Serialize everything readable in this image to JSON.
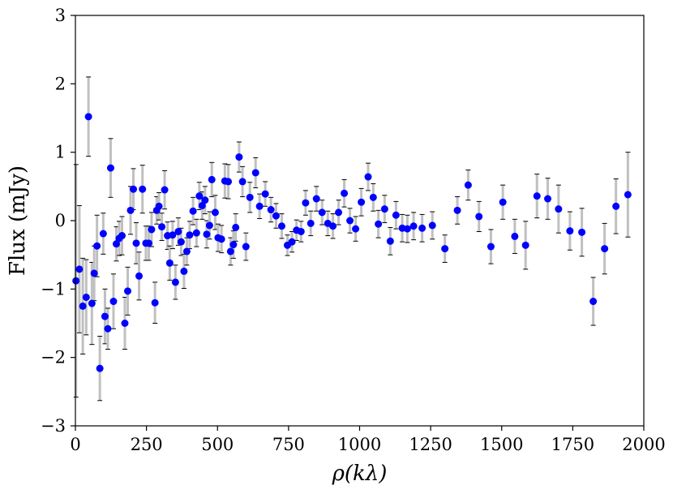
{
  "chart_data": {
    "type": "scatter",
    "xlabel": "ρ(kλ)",
    "ylabel": "Flux (mJy)",
    "xlim": [
      0,
      2000
    ],
    "ylim": [
      -3,
      3
    ],
    "x_ticks": [
      "0",
      "250",
      "500",
      "750",
      "1000",
      "1250",
      "1500",
      "1750",
      "2000"
    ],
    "y_ticks": [
      "−3",
      "−2",
      "−1",
      "0",
      "1",
      "2",
      "3"
    ],
    "grid": false,
    "marker_color": "#0000ff",
    "errorbar_color": "#c0c0c0",
    "errorbar_cap_color": "#000000",
    "points": [
      {
        "x": 2,
        "y": -0.88,
        "err": 1.7
      },
      {
        "x": 14,
        "y": -0.71,
        "err": 0.93
      },
      {
        "x": 26,
        "y": -1.25,
        "err": 0.7
      },
      {
        "x": 38,
        "y": -1.12,
        "err": 0.55
      },
      {
        "x": 46,
        "y": 1.52,
        "err": 0.58
      },
      {
        "x": 58,
        "y": -1.21,
        "err": 0.6
      },
      {
        "x": 66,
        "y": -0.77,
        "err": 0.4
      },
      {
        "x": 76,
        "y": -0.37,
        "err": 0.45
      },
      {
        "x": 86,
        "y": -2.16,
        "err": 0.47
      },
      {
        "x": 98,
        "y": -0.19,
        "err": 0.3
      },
      {
        "x": 104,
        "y": -1.4,
        "err": 0.4
      },
      {
        "x": 114,
        "y": -1.58,
        "err": 0.3
      },
      {
        "x": 124,
        "y": 0.77,
        "err": 0.43
      },
      {
        "x": 134,
        "y": -1.18,
        "err": 0.4
      },
      {
        "x": 144,
        "y": -0.34,
        "err": 0.25
      },
      {
        "x": 154,
        "y": -0.26,
        "err": 0.25
      },
      {
        "x": 164,
        "y": -0.22,
        "err": 0.28
      },
      {
        "x": 174,
        "y": -1.5,
        "err": 0.38
      },
      {
        "x": 184,
        "y": -1.03,
        "err": 0.35
      },
      {
        "x": 194,
        "y": 0.15,
        "err": 0.35
      },
      {
        "x": 204,
        "y": 0.46,
        "err": 0.3
      },
      {
        "x": 214,
        "y": -0.33,
        "err": 0.3
      },
      {
        "x": 224,
        "y": -0.81,
        "err": 0.35
      },
      {
        "x": 236,
        "y": 0.46,
        "err": 0.35
      },
      {
        "x": 248,
        "y": -0.33,
        "err": 0.25
      },
      {
        "x": 258,
        "y": -0.33,
        "err": 0.25
      },
      {
        "x": 268,
        "y": -0.13,
        "err": 0.25
      },
      {
        "x": 280,
        "y": -1.2,
        "err": 0.3
      },
      {
        "x": 286,
        "y": 0.15,
        "err": 0.2
      },
      {
        "x": 294,
        "y": 0.21,
        "err": 0.2
      },
      {
        "x": 304,
        "y": -0.09,
        "err": 0.2
      },
      {
        "x": 314,
        "y": 0.45,
        "err": 0.28
      },
      {
        "x": 324,
        "y": -0.22,
        "err": 0.2
      },
      {
        "x": 332,
        "y": -0.62,
        "err": 0.25
      },
      {
        "x": 342,
        "y": -0.21,
        "err": 0.2
      },
      {
        "x": 352,
        "y": -0.9,
        "err": 0.25
      },
      {
        "x": 362,
        "y": -0.16,
        "err": 0.2
      },
      {
        "x": 372,
        "y": -0.31,
        "err": 0.2
      },
      {
        "x": 382,
        "y": -0.74,
        "err": 0.25
      },
      {
        "x": 392,
        "y": -0.45,
        "err": 0.2
      },
      {
        "x": 402,
        "y": -0.21,
        "err": 0.2
      },
      {
        "x": 414,
        "y": 0.14,
        "err": 0.2
      },
      {
        "x": 426,
        "y": -0.18,
        "err": 0.2
      },
      {
        "x": 436,
        "y": 0.36,
        "err": 0.2
      },
      {
        "x": 446,
        "y": 0.22,
        "err": 0.2
      },
      {
        "x": 456,
        "y": 0.3,
        "err": 0.2
      },
      {
        "x": 462,
        "y": -0.2,
        "err": 0.2
      },
      {
        "x": 472,
        "y": -0.07,
        "err": 0.2
      },
      {
        "x": 480,
        "y": 0.6,
        "err": 0.25
      },
      {
        "x": 492,
        "y": 0.12,
        "err": 0.25
      },
      {
        "x": 502,
        "y": -0.25,
        "err": 0.2
      },
      {
        "x": 514,
        "y": -0.27,
        "err": 0.2
      },
      {
        "x": 526,
        "y": 0.58,
        "err": 0.25
      },
      {
        "x": 538,
        "y": 0.57,
        "err": 0.25
      },
      {
        "x": 546,
        "y": -0.45,
        "err": 0.2
      },
      {
        "x": 556,
        "y": -0.35,
        "err": 0.2
      },
      {
        "x": 564,
        "y": -0.1,
        "err": 0.2
      },
      {
        "x": 576,
        "y": 0.93,
        "err": 0.22
      },
      {
        "x": 588,
        "y": 0.57,
        "err": 0.22
      },
      {
        "x": 600,
        "y": -0.38,
        "err": 0.2
      },
      {
        "x": 614,
        "y": 0.34,
        "err": 0.22
      },
      {
        "x": 634,
        "y": 0.7,
        "err": 0.22
      },
      {
        "x": 648,
        "y": 0.21,
        "err": 0.18
      },
      {
        "x": 668,
        "y": 0.39,
        "err": 0.18
      },
      {
        "x": 688,
        "y": 0.16,
        "err": 0.18
      },
      {
        "x": 706,
        "y": 0.07,
        "err": 0.18
      },
      {
        "x": 726,
        "y": -0.08,
        "err": 0.18
      },
      {
        "x": 746,
        "y": -0.36,
        "err": 0.15
      },
      {
        "x": 762,
        "y": -0.31,
        "err": 0.15
      },
      {
        "x": 778,
        "y": -0.14,
        "err": 0.15
      },
      {
        "x": 794,
        "y": -0.16,
        "err": 0.15
      },
      {
        "x": 810,
        "y": 0.26,
        "err": 0.18
      },
      {
        "x": 828,
        "y": -0.04,
        "err": 0.18
      },
      {
        "x": 848,
        "y": 0.32,
        "err": 0.18
      },
      {
        "x": 868,
        "y": 0.12,
        "err": 0.18
      },
      {
        "x": 888,
        "y": -0.04,
        "err": 0.18
      },
      {
        "x": 906,
        "y": -0.08,
        "err": 0.18
      },
      {
        "x": 926,
        "y": 0.12,
        "err": 0.18
      },
      {
        "x": 946,
        "y": 0.4,
        "err": 0.2
      },
      {
        "x": 966,
        "y": 0.0,
        "err": 0.18
      },
      {
        "x": 986,
        "y": -0.12,
        "err": 0.18
      },
      {
        "x": 1006,
        "y": 0.27,
        "err": 0.2
      },
      {
        "x": 1030,
        "y": 0.64,
        "err": 0.2
      },
      {
        "x": 1048,
        "y": 0.34,
        "err": 0.2
      },
      {
        "x": 1066,
        "y": -0.05,
        "err": 0.2
      },
      {
        "x": 1088,
        "y": 0.17,
        "err": 0.2
      },
      {
        "x": 1108,
        "y": -0.3,
        "err": 0.2
      },
      {
        "x": 1128,
        "y": 0.08,
        "err": 0.2
      },
      {
        "x": 1150,
        "y": -0.11,
        "err": 0.2
      },
      {
        "x": 1168,
        "y": -0.12,
        "err": 0.2
      },
      {
        "x": 1190,
        "y": -0.08,
        "err": 0.2
      },
      {
        "x": 1220,
        "y": -0.11,
        "err": 0.2
      },
      {
        "x": 1256,
        "y": -0.07,
        "err": 0.2
      },
      {
        "x": 1300,
        "y": -0.41,
        "err": 0.2
      },
      {
        "x": 1344,
        "y": 0.15,
        "err": 0.2
      },
      {
        "x": 1382,
        "y": 0.52,
        "err": 0.22
      },
      {
        "x": 1420,
        "y": 0.06,
        "err": 0.22
      },
      {
        "x": 1462,
        "y": -0.38,
        "err": 0.25
      },
      {
        "x": 1504,
        "y": 0.27,
        "err": 0.25
      },
      {
        "x": 1546,
        "y": -0.23,
        "err": 0.25
      },
      {
        "x": 1584,
        "y": -0.36,
        "err": 0.35
      },
      {
        "x": 1624,
        "y": 0.36,
        "err": 0.32
      },
      {
        "x": 1662,
        "y": 0.32,
        "err": 0.3
      },
      {
        "x": 1700,
        "y": 0.17,
        "err": 0.35
      },
      {
        "x": 1740,
        "y": -0.15,
        "err": 0.28
      },
      {
        "x": 1782,
        "y": -0.17,
        "err": 0.35
      },
      {
        "x": 1822,
        "y": -1.18,
        "err": 0.35
      },
      {
        "x": 1862,
        "y": -0.41,
        "err": 0.37
      },
      {
        "x": 1902,
        "y": 0.21,
        "err": 0.4
      },
      {
        "x": 1944,
        "y": 0.38,
        "err": 0.62
      }
    ]
  }
}
